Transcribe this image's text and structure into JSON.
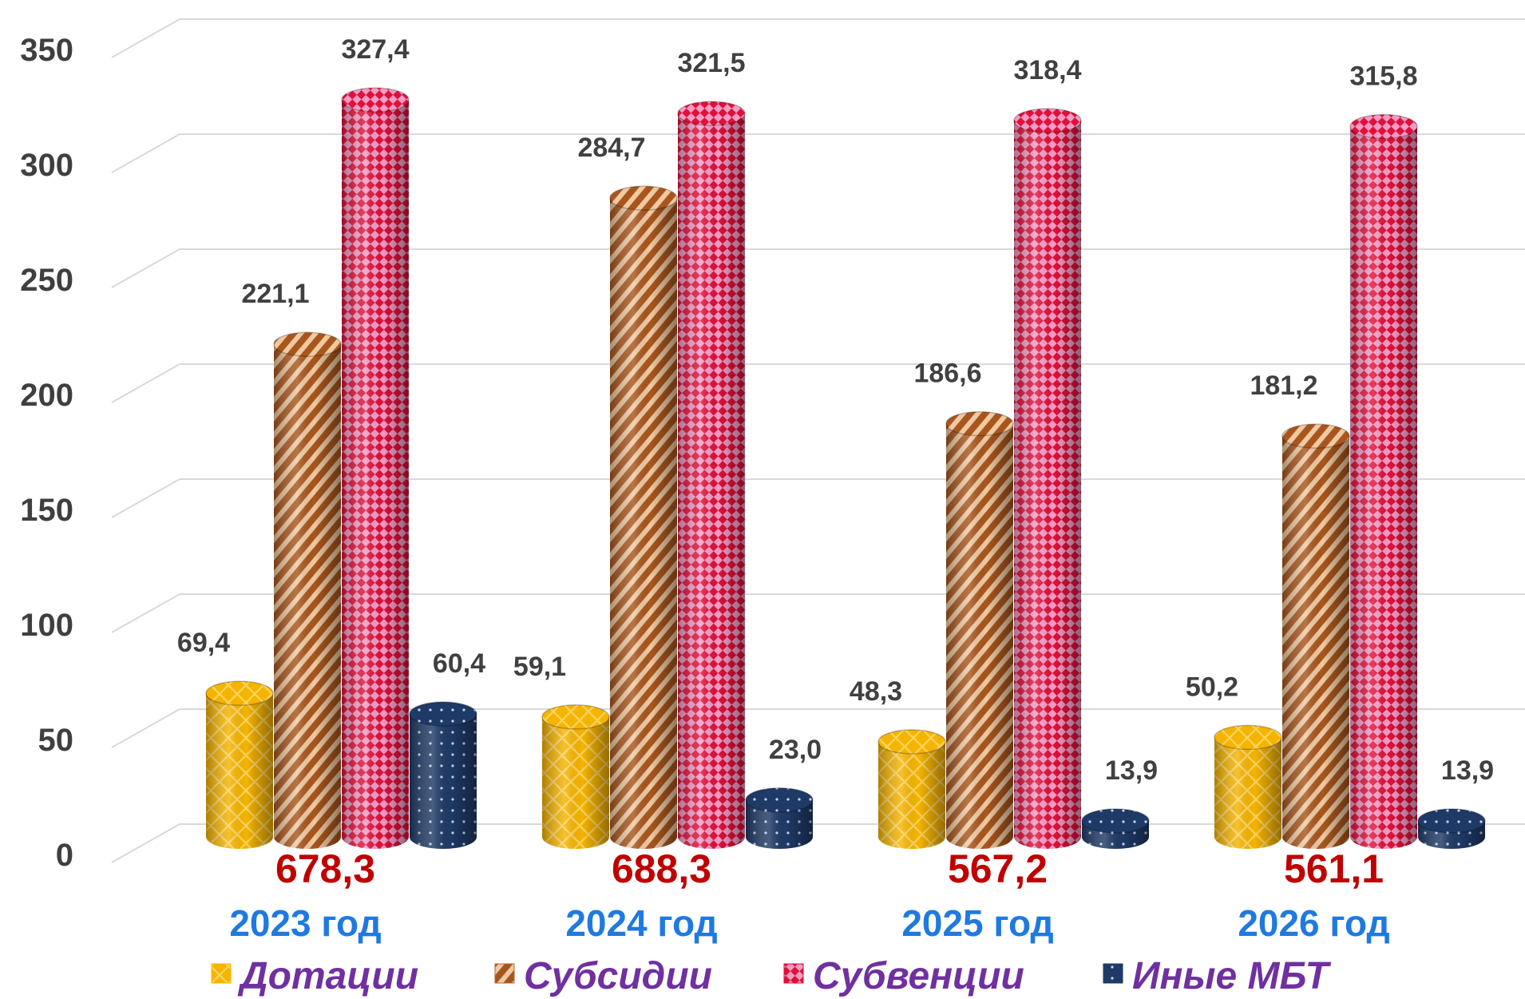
{
  "chart_data": {
    "type": "bar",
    "categories": [
      "2023 год",
      "2024 год",
      "2025 год",
      "2026 год"
    ],
    "series": [
      {
        "name": "Дотации",
        "values": [
          69.4,
          59.1,
          48.3,
          50.2
        ],
        "labels": [
          "69,4",
          "59,1",
          "48,3",
          "50,2"
        ],
        "color": "#f5b400",
        "pattern": "brick"
      },
      {
        "name": "Субсидии",
        "values": [
          221.1,
          284.7,
          186.6,
          181.2
        ],
        "labels": [
          "221,1",
          "284,7",
          "186,6",
          "181,2"
        ],
        "color": "#b8642a",
        "pattern": "diagonal-stripes"
      },
      {
        "name": "Субвенции",
        "values": [
          327.4,
          321.5,
          318.4,
          315.8
        ],
        "labels": [
          "327,4",
          "321,5",
          "318,4",
          "315,8"
        ],
        "color": "#e0103a",
        "pattern": "checker"
      },
      {
        "name": "Иные МБТ",
        "values": [
          60.4,
          23.0,
          13.9,
          13.9
        ],
        "labels": [
          "60,4",
          "23,0",
          "13,9",
          "13,9"
        ],
        "color": "#1f3a66",
        "pattern": "dots"
      }
    ],
    "totals": [
      "678,3",
      "688,3",
      "567,2",
      "561,1"
    ],
    "ylim": [
      0,
      350
    ],
    "yticks": [
      0,
      50,
      100,
      150,
      200,
      250,
      300,
      350
    ],
    "grid": true,
    "legend_position": "bottom",
    "style": "3d-cylinder",
    "colors": {
      "total": "#c00000",
      "category": "#1f7ae0",
      "legend": "#7030a0",
      "tick": "#3f3f3f",
      "label": "#404040"
    }
  }
}
